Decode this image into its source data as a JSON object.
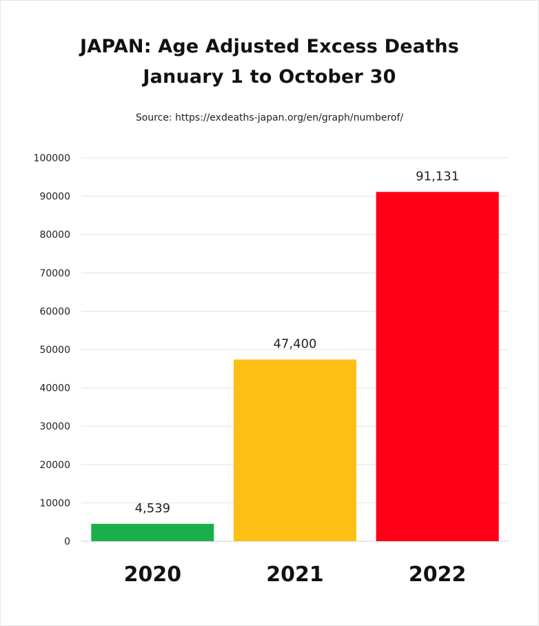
{
  "chart_data": {
    "type": "bar",
    "title": "JAPAN: Age Adjusted Excess Deaths",
    "subtitle": "January 1 to October 30",
    "source": "Source: https://exdeaths-japan.org/en/graph/numberof/",
    "categories": [
      "2020",
      "2021",
      "2022"
    ],
    "values": [
      4539,
      47400,
      91131
    ],
    "data_labels": [
      "4,539",
      "47,400",
      "91,131"
    ],
    "colors": [
      "#1aaf4b",
      "#ffc016",
      "#ff0018"
    ],
    "ylim": [
      0,
      100000
    ],
    "yticks": [
      0,
      10000,
      20000,
      30000,
      40000,
      50000,
      60000,
      70000,
      80000,
      90000,
      100000
    ],
    "ytick_labels": [
      "0",
      "10000",
      "20000",
      "30000",
      "40000",
      "50000",
      "60000",
      "70000",
      "80000",
      "90000",
      "100000"
    ],
    "grid": true,
    "xlabel": "",
    "ylabel": ""
  }
}
